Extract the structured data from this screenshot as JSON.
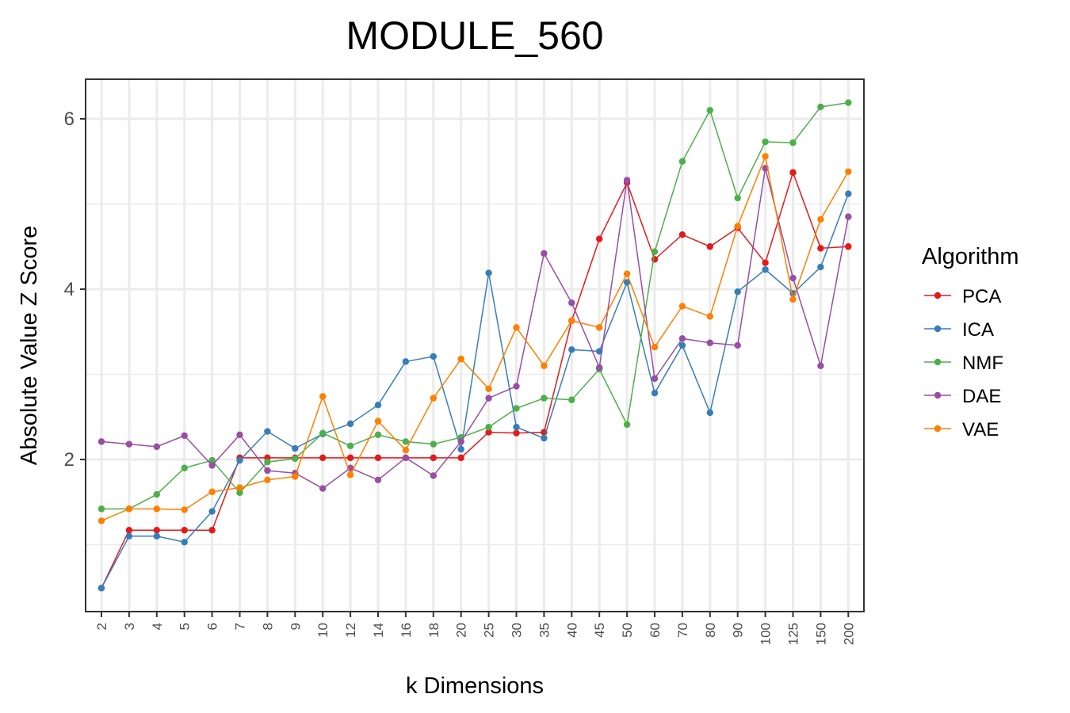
{
  "chart_data": {
    "type": "line",
    "title": "MODULE_560",
    "xlabel": "k Dimensions",
    "ylabel": "Absolute Value Z Score",
    "categories": [
      "2",
      "3",
      "4",
      "5",
      "6",
      "7",
      "8",
      "9",
      "10",
      "12",
      "14",
      "16",
      "18",
      "20",
      "25",
      "30",
      "35",
      "40",
      "45",
      "50",
      "60",
      "70",
      "80",
      "90",
      "100",
      "125",
      "150",
      "200"
    ],
    "yticks": [
      2,
      4,
      6
    ],
    "ylim": [
      0.3,
      6.45
    ],
    "grid": true,
    "legend": {
      "title": "Algorithm",
      "position": "right"
    },
    "series": [
      {
        "name": "PCA",
        "color": "#e41a1c",
        "values": [
          0.49,
          1.17,
          1.17,
          1.17,
          1.17,
          2.02,
          2.02,
          2.02,
          2.02,
          2.02,
          2.02,
          2.02,
          2.02,
          2.02,
          2.32,
          2.31,
          2.32,
          3.63,
          4.59,
          5.25,
          4.35,
          4.64,
          4.5,
          4.72,
          4.31,
          5.37,
          4.48,
          4.5
        ]
      },
      {
        "name": "ICA",
        "color": "#377eb8",
        "values": [
          0.49,
          1.1,
          1.1,
          1.03,
          1.39,
          1.99,
          2.33,
          2.13,
          2.3,
          2.42,
          2.64,
          3.15,
          3.21,
          2.12,
          4.19,
          2.38,
          2.25,
          3.29,
          3.27,
          4.08,
          2.78,
          3.34,
          2.55,
          3.97,
          4.23,
          3.95,
          4.26,
          5.12
        ]
      },
      {
        "name": "NMF",
        "color": "#4daf4a",
        "values": [
          1.42,
          1.42,
          1.59,
          1.9,
          1.99,
          1.61,
          1.97,
          2.01,
          2.31,
          2.16,
          2.29,
          2.21,
          2.18,
          2.26,
          2.38,
          2.6,
          2.72,
          2.7,
          3.06,
          2.41,
          4.44,
          5.5,
          6.1,
          5.07,
          5.73,
          5.72,
          6.14,
          6.19
        ]
      },
      {
        "name": "DAE",
        "color": "#984ea3",
        "values": [
          2.21,
          2.18,
          2.15,
          2.28,
          1.93,
          2.29,
          1.87,
          1.84,
          1.66,
          1.9,
          1.76,
          2.02,
          1.81,
          2.21,
          2.72,
          2.86,
          4.42,
          3.84,
          3.08,
          5.28,
          2.95,
          3.42,
          3.37,
          3.34,
          5.42,
          4.13,
          3.1,
          4.85
        ]
      },
      {
        "name": "VAE",
        "color": "#ff7f00",
        "values": [
          1.28,
          1.42,
          1.42,
          1.41,
          1.62,
          1.67,
          1.76,
          1.8,
          2.74,
          1.82,
          2.45,
          2.11,
          2.72,
          3.18,
          2.83,
          3.55,
          3.1,
          3.63,
          3.55,
          4.18,
          3.32,
          3.8,
          3.68,
          4.74,
          5.56,
          3.88,
          4.82,
          5.38
        ]
      }
    ]
  }
}
